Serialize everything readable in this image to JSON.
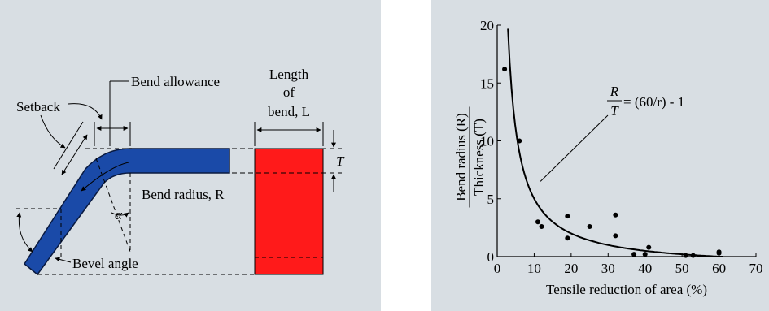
{
  "left_diagram": {
    "labels": {
      "bend_allowance": "Bend allowance",
      "setback": "Setback",
      "bend_radius": "Bend radius, R",
      "alpha": "α",
      "bevel_angle": "Bevel angle",
      "length_line1": "Length",
      "length_line2": "of",
      "length_line3": "bend, L",
      "thickness": "T"
    },
    "colors": {
      "sheet": "#1a4aa8",
      "sheet_edge": "#0a1a40",
      "block": "#ff1a1a",
      "background": "#d8dee3"
    }
  },
  "chart_data": {
    "type": "scatter",
    "xlabel": "Tensile reduction of area (%)",
    "ylabel_top": "Bend radius (R)",
    "ylabel_bottom": "Thickness (T)",
    "xlim": [
      0,
      70
    ],
    "ylim": [
      0,
      20
    ],
    "x_ticks": [
      0,
      10,
      20,
      30,
      40,
      50,
      60,
      70
    ],
    "y_ticks": [
      0,
      5,
      10,
      15,
      20
    ],
    "annotation": {
      "numerator": "R",
      "denominator": "T",
      "rhs": "= (60/r) - 1"
    },
    "curve": {
      "formula": "60/r - 1",
      "x_start": 2.9,
      "x_end": 61
    },
    "points": [
      {
        "x": 2,
        "y": 16.2
      },
      {
        "x": 6,
        "y": 10
      },
      {
        "x": 11,
        "y": 3
      },
      {
        "x": 12,
        "y": 2.6
      },
      {
        "x": 19,
        "y": 3.5
      },
      {
        "x": 19,
        "y": 1.6
      },
      {
        "x": 25,
        "y": 2.6
      },
      {
        "x": 32,
        "y": 3.6
      },
      {
        "x": 32,
        "y": 1.8
      },
      {
        "x": 37,
        "y": 0.2
      },
      {
        "x": 40,
        "y": 0.2
      },
      {
        "x": 41,
        "y": 0.8
      },
      {
        "x": 51,
        "y": 0.1
      },
      {
        "x": 53,
        "y": 0.1
      },
      {
        "x": 60,
        "y": 0.3
      },
      {
        "x": 60,
        "y": 0.4
      }
    ],
    "grid": false
  }
}
